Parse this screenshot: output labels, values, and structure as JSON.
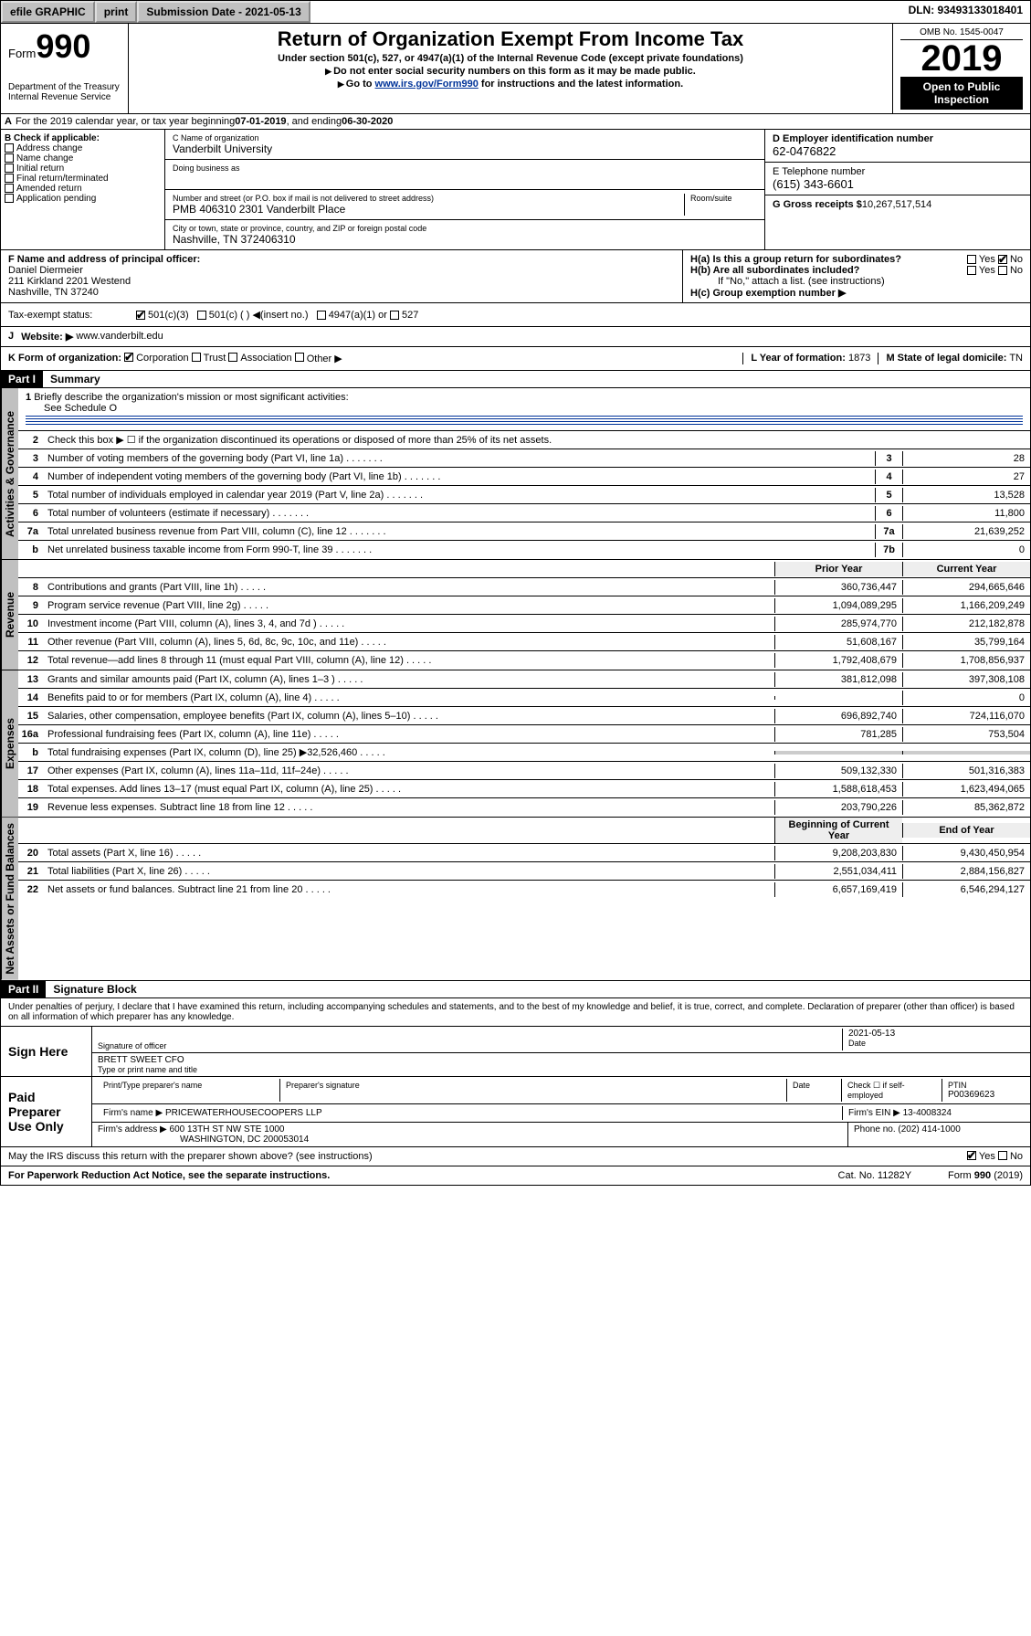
{
  "topbar": {
    "efile": "efile GRAPHIC",
    "print": "print",
    "subdate_label": "Submission Date - 2021-05-13",
    "dln": "DLN: 93493133018401"
  },
  "header": {
    "form_label": "Form",
    "form_number": "990",
    "title": "Return of Organization Exempt From Income Tax",
    "subtitle": "Under section 501(c), 527, or 4947(a)(1) of the Internal Revenue Code (except private foundations)",
    "note1": "Do not enter social security numbers on this form as it may be made public.",
    "note2_pre": "Go to ",
    "note2_link": "www.irs.gov/Form990",
    "note2_post": " for instructions and the latest information.",
    "omb": "OMB No. 1545-0047",
    "year": "2019",
    "otp": "Open to Public Inspection",
    "dept": "Department of the Treasury Internal Revenue Service"
  },
  "section_a": {
    "prefix": "A",
    "text_pre": "For the 2019 calendar year, or tax year beginning ",
    "begin": "07-01-2019",
    "text_mid": ", and ending ",
    "end": "06-30-2020"
  },
  "section_b": {
    "label": "B Check if applicable:",
    "opts": [
      "Address change",
      "Name change",
      "Initial return",
      "Final return/terminated",
      "Amended return",
      "Application pending"
    ]
  },
  "section_c": {
    "name_label": "C Name of organization",
    "name": "Vanderbilt University",
    "dba_label": "Doing business as",
    "addr_label": "Number and street (or P.O. box if mail is not delivered to street address)",
    "room_label": "Room/suite",
    "addr": "PMB 406310 2301 Vanderbilt Place",
    "city_label": "City or town, state or province, country, and ZIP or foreign postal code",
    "city": "Nashville, TN  372406310"
  },
  "section_d": {
    "ein_label": "D Employer identification number",
    "ein": "62-0476822",
    "tel_label": "E Telephone number",
    "tel": "(615) 343-6601",
    "gross_label": "G Gross receipts $",
    "gross": "10,267,517,514"
  },
  "section_f": {
    "label": "F  Name and address of principal officer:",
    "name": "Daniel Diermeier",
    "addr1": "211 Kirkland 2201 Westend",
    "addr2": "Nashville, TN  37240"
  },
  "section_h": {
    "ha": "H(a)  Is this a group return for subordinates?",
    "hb": "H(b)  Are all subordinates included?",
    "hb_note": "If \"No,\" attach a list. (see instructions)",
    "hc": "H(c)  Group exemption number ▶",
    "yes": "Yes",
    "no": "No"
  },
  "tax_status": {
    "label": "Tax-exempt status:",
    "opt1": "501(c)(3)",
    "opt2": "501(c) (   ) ◀(insert no.)",
    "opt3": "4947(a)(1) or",
    "opt4": "527"
  },
  "section_j": {
    "label": "J",
    "website_label": "Website: ▶",
    "website": "www.vanderbilt.edu"
  },
  "section_k": {
    "label": "K Form of organization:",
    "opts": [
      "Corporation",
      "Trust",
      "Association",
      "Other ▶"
    ],
    "l_label": "L Year of formation:",
    "l_val": "1873",
    "m_label": "M State of legal domicile:",
    "m_val": "TN"
  },
  "part1": {
    "hdr": "Part I",
    "title": "Summary",
    "q1": "Briefly describe the organization's mission or most significant activities:",
    "q1_ans": "See Schedule O",
    "q2": "Check this box ▶ ☐  if the organization discontinued its operations or disposed of more than 25% of its net assets.",
    "rows_top": [
      {
        "n": "3",
        "d": "Number of voting members of the governing body (Part VI, line 1a)",
        "box": "3",
        "v": "28"
      },
      {
        "n": "4",
        "d": "Number of independent voting members of the governing body (Part VI, line 1b)",
        "box": "4",
        "v": "27"
      },
      {
        "n": "5",
        "d": "Total number of individuals employed in calendar year 2019 (Part V, line 2a)",
        "box": "5",
        "v": "13,528"
      },
      {
        "n": "6",
        "d": "Total number of volunteers (estimate if necessary)",
        "box": "6",
        "v": "11,800"
      },
      {
        "n": "7a",
        "d": "Total unrelated business revenue from Part VIII, column (C), line 12",
        "box": "7a",
        "v": "21,639,252"
      },
      {
        "n": "b",
        "d": "Net unrelated business taxable income from Form 990-T, line 39",
        "box": "7b",
        "v": "0"
      }
    ],
    "col_hdr_prior": "Prior Year",
    "col_hdr_curr": "Current Year",
    "revenue_rows": [
      {
        "n": "8",
        "d": "Contributions and grants (Part VIII, line 1h)",
        "p": "360,736,447",
        "c": "294,665,646"
      },
      {
        "n": "9",
        "d": "Program service revenue (Part VIII, line 2g)",
        "p": "1,094,089,295",
        "c": "1,166,209,249"
      },
      {
        "n": "10",
        "d": "Investment income (Part VIII, column (A), lines 3, 4, and 7d )",
        "p": "285,974,770",
        "c": "212,182,878"
      },
      {
        "n": "11",
        "d": "Other revenue (Part VIII, column (A), lines 5, 6d, 8c, 9c, 10c, and 11e)",
        "p": "51,608,167",
        "c": "35,799,164"
      },
      {
        "n": "12",
        "d": "Total revenue—add lines 8 through 11 (must equal Part VIII, column (A), line 12)",
        "p": "1,792,408,679",
        "c": "1,708,856,937"
      }
    ],
    "expense_rows": [
      {
        "n": "13",
        "d": "Grants and similar amounts paid (Part IX, column (A), lines 1–3 )",
        "p": "381,812,098",
        "c": "397,308,108"
      },
      {
        "n": "14",
        "d": "Benefits paid to or for members (Part IX, column (A), line 4)",
        "p": "",
        "c": "0"
      },
      {
        "n": "15",
        "d": "Salaries, other compensation, employee benefits (Part IX, column (A), lines 5–10)",
        "p": "696,892,740",
        "c": "724,116,070"
      },
      {
        "n": "16a",
        "d": "Professional fundraising fees (Part IX, column (A), line 11e)",
        "p": "781,285",
        "c": "753,504"
      },
      {
        "n": "b",
        "d": "Total fundraising expenses (Part IX, column (D), line 25) ▶32,526,460",
        "p": "",
        "c": "",
        "nobox": true
      },
      {
        "n": "17",
        "d": "Other expenses (Part IX, column (A), lines 11a–11d, 11f–24e)",
        "p": "509,132,330",
        "c": "501,316,383"
      },
      {
        "n": "18",
        "d": "Total expenses. Add lines 13–17 (must equal Part IX, column (A), line 25)",
        "p": "1,588,618,453",
        "c": "1,623,494,065"
      },
      {
        "n": "19",
        "d": "Revenue less expenses. Subtract line 18 from line 12",
        "p": "203,790,226",
        "c": "85,362,872"
      }
    ],
    "net_hdr_begin": "Beginning of Current Year",
    "net_hdr_end": "End of Year",
    "net_rows": [
      {
        "n": "20",
        "d": "Total assets (Part X, line 16)",
        "p": "9,208,203,830",
        "c": "9,430,450,954"
      },
      {
        "n": "21",
        "d": "Total liabilities (Part X, line 26)",
        "p": "2,551,034,411",
        "c": "2,884,156,827"
      },
      {
        "n": "22",
        "d": "Net assets or fund balances. Subtract line 21 from line 20",
        "p": "6,657,169,419",
        "c": "6,546,294,127"
      }
    ],
    "tab_gov": "Activities & Governance",
    "tab_rev": "Revenue",
    "tab_exp": "Expenses",
    "tab_net": "Net Assets or Fund Balances"
  },
  "part2": {
    "hdr": "Part II",
    "title": "Signature Block",
    "perjury": "Under penalties of perjury, I declare that I have examined this return, including accompanying schedules and statements, and to the best of my knowledge and belief, it is true, correct, and complete. Declaration of preparer (other than officer) is based on all information of which preparer has any knowledge.",
    "sign_here": "Sign Here",
    "sig_officer": "Signature of officer",
    "date": "2021-05-13",
    "date_label": "Date",
    "officer_name": "BRETT SWEET CFO",
    "type_name": "Type or print name and title",
    "paid_label": "Paid Preparer Use Only",
    "prep_name_label": "Print/Type preparer's name",
    "prep_sig_label": "Preparer's signature",
    "check_self": "Check ☐ if self-employed",
    "ptin_label": "PTIN",
    "ptin": "P00369623",
    "firm_name_label": "Firm's name    ▶",
    "firm_name": "PRICEWATERHOUSECOOPERS LLP",
    "firm_ein_label": "Firm's EIN ▶",
    "firm_ein": "13-4008324",
    "firm_addr_label": "Firm's address ▶",
    "firm_addr1": "600 13TH ST NW STE 1000",
    "firm_addr2": "WASHINGTON, DC  200053014",
    "phone_label": "Phone no.",
    "phone": "(202) 414-1000",
    "discuss": "May the IRS discuss this return with the preparer shown above? (see instructions)"
  },
  "footer": {
    "pra": "For Paperwork Reduction Act Notice, see the separate instructions.",
    "cat": "Cat. No. 11282Y",
    "form": "Form 990 (2019)"
  }
}
